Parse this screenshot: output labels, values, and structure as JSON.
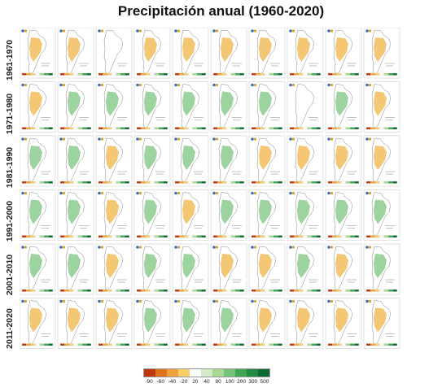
{
  "title": "Precipitación anual (1960-2020)",
  "rows": [
    {
      "label": "1961-1970",
      "panels": [
        "d",
        "d",
        "n",
        "d",
        "d",
        "d",
        "d",
        "d",
        "d",
        "d"
      ]
    },
    {
      "label": "1971-1980",
      "panels": [
        "d",
        "w",
        "w",
        "w",
        "w",
        "w",
        "w",
        "n",
        "w",
        "d"
      ]
    },
    {
      "label": "1981-1990",
      "panels": [
        "w",
        "w",
        "d",
        "w",
        "w",
        "w",
        "d",
        "d",
        "d",
        "d"
      ]
    },
    {
      "label": "1991-2000",
      "panels": [
        "w",
        "w",
        "d",
        "w",
        "d",
        "w",
        "w",
        "w",
        "w",
        "w"
      ]
    },
    {
      "label": "2001-2010",
      "panels": [
        "w",
        "w",
        "d",
        "w",
        "w",
        "d",
        "d",
        "w",
        "d",
        "w"
      ]
    },
    {
      "label": "2011-2020",
      "panels": [
        "d",
        "d",
        "d",
        "w",
        "w",
        "w",
        "d",
        "d",
        "d",
        "d"
      ]
    }
  ],
  "legend": {
    "labels": [
      "-90",
      "-60",
      "-40",
      "-20",
      "20",
      "40",
      "80",
      "100",
      "200",
      "300",
      "500"
    ],
    "colors": [
      "#c0360f",
      "#e2711c",
      "#f0a33c",
      "#f8cf6a",
      "#ffffff",
      "#d3ecc5",
      "#a8d993",
      "#75c27a",
      "#3fa656",
      "#1f8b43",
      "#0e6a33"
    ]
  },
  "colors": {
    "dry": "#f0b447",
    "wet": "#7cc47e",
    "neutral": "#ffffff"
  }
}
